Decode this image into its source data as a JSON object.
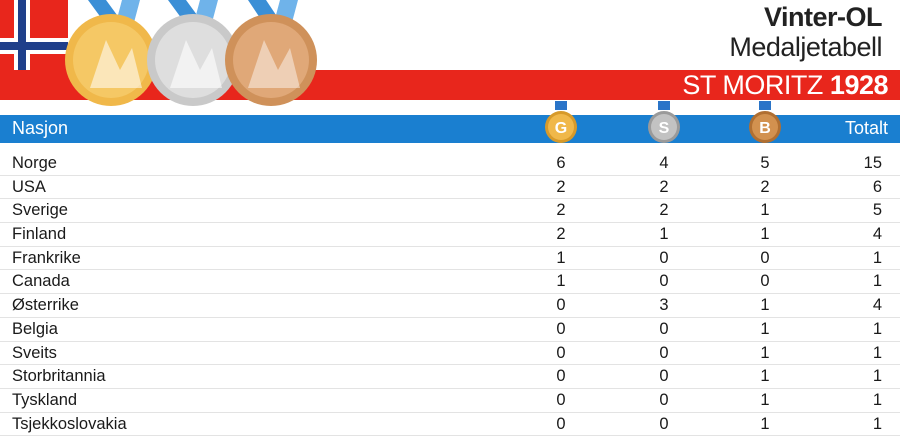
{
  "header": {
    "title": "Vinter-OL",
    "subtitle": "Medaljetabell",
    "location_text": "ST MORITZ",
    "year": "1928"
  },
  "columns": {
    "nation": "Nasjon",
    "gold": "G",
    "silver": "S",
    "bronze": "B",
    "total": "Totalt"
  },
  "colors": {
    "header_bar": "#1a7fd0",
    "red_band": "#e8261c",
    "gold": "#e8ac35",
    "silver": "#b9b9b9",
    "bronze": "#c88a4e"
  },
  "rows": [
    {
      "nation": "Norge",
      "gold": "6",
      "silver": "4",
      "bronze": "5",
      "total": "15"
    },
    {
      "nation": "USA",
      "gold": "2",
      "silver": "2",
      "bronze": "2",
      "total": "6"
    },
    {
      "nation": "Sverige",
      "gold": "2",
      "silver": "2",
      "bronze": "1",
      "total": "5"
    },
    {
      "nation": "Finland",
      "gold": "2",
      "silver": "1",
      "bronze": "1",
      "total": "4"
    },
    {
      "nation": "Frankrike",
      "gold": "1",
      "silver": "0",
      "bronze": "0",
      "total": "1"
    },
    {
      "nation": "Canada",
      "gold": "1",
      "silver": "0",
      "bronze": "0",
      "total": "1"
    },
    {
      "nation": "Østerrike",
      "gold": "0",
      "silver": "3",
      "bronze": "1",
      "total": "4"
    },
    {
      "nation": "Belgia",
      "gold": "0",
      "silver": "0",
      "bronze": "1",
      "total": "1"
    },
    {
      "nation": "Sveits",
      "gold": "0",
      "silver": "0",
      "bronze": "1",
      "total": "1"
    },
    {
      "nation": "Storbritannia",
      "gold": "0",
      "silver": "0",
      "bronze": "1",
      "total": "1"
    },
    {
      "nation": "Tyskland",
      "gold": "0",
      "silver": "0",
      "bronze": "1",
      "total": "1"
    },
    {
      "nation": "Tsjekkoslovakia",
      "gold": "0",
      "silver": "0",
      "bronze": "1",
      "total": "1"
    }
  ]
}
